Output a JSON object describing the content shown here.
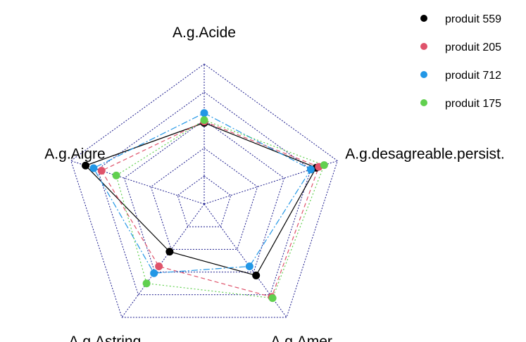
{
  "chart_data": {
    "type": "radar",
    "axes": [
      "A.g.Acide",
      "A.g.desagreable.persist.",
      "A.g.Amer",
      "A.g.Astring.",
      "A.g.Aigre"
    ],
    "levels": 5,
    "range": [
      0,
      1
    ],
    "grid": true,
    "legend_position": "top-right",
    "series": [
      {
        "name": "produit 559",
        "color": "#000000",
        "dash": "",
        "values": [
          0.58,
          0.84,
          0.63,
          0.42,
          0.89
        ]
      },
      {
        "name": "produit 205",
        "color": "#DF536B",
        "dash": "6,4",
        "values": [
          0.59,
          0.86,
          0.82,
          0.55,
          0.77
        ]
      },
      {
        "name": "produit 712",
        "color": "#2297E6",
        "dash": "9,3,2,3",
        "values": [
          0.65,
          0.8,
          0.55,
          0.61,
          0.83
        ]
      },
      {
        "name": "produit 175",
        "color": "#61D04F",
        "dash": "2,3",
        "values": [
          0.6,
          0.9,
          0.83,
          0.7,
          0.66
        ]
      }
    ]
  }
}
